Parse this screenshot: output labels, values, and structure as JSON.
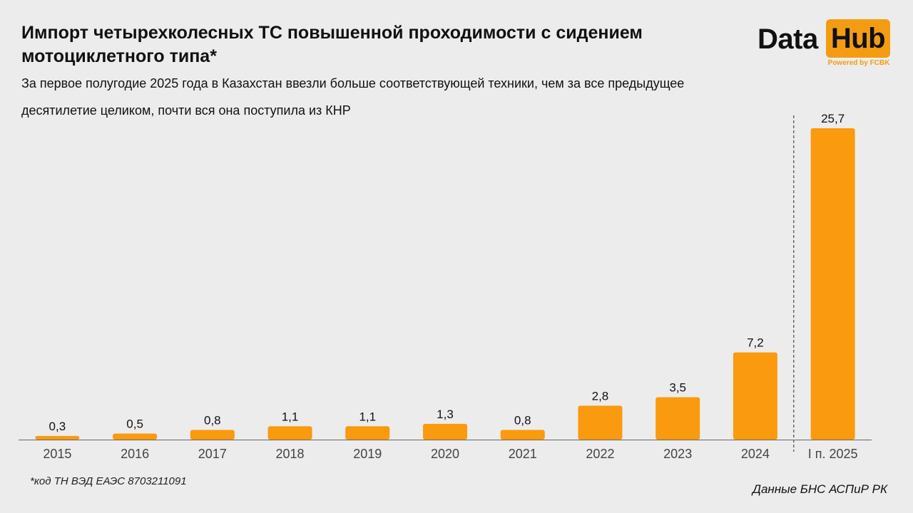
{
  "header": {
    "title": "Импорт четырехколесных ТС повышенной проходимости с сидением мотоциклетного типа*",
    "subtitle": "За первое полугодие 2025 года в Казахстан ввезли больше соответствующей техники, чем за все предыдущее десятилетие целиком, почти вся она поступила из КНР"
  },
  "logo": {
    "data_text": "Data",
    "hub_text": "Hub",
    "powered_text": "Powered by FCBK"
  },
  "colors": {
    "bar": "#fa9a0f",
    "accent": "#f39c12",
    "background": "#ececec"
  },
  "chart_data": {
    "type": "bar",
    "categories": [
      "2015",
      "2016",
      "2017",
      "2018",
      "2019",
      "2020",
      "2021",
      "2022",
      "2023",
      "2024",
      "I п. 2025"
    ],
    "values": [
      0.3,
      0.5,
      0.8,
      1.1,
      1.1,
      1.3,
      0.8,
      2.8,
      3.5,
      7.2,
      25.7
    ],
    "labels": [
      "0,3",
      "0,5",
      "0,8",
      "1,1",
      "1,1",
      "1,3",
      "0,8",
      "2,8",
      "3,5",
      "7,2",
      "25,7"
    ],
    "ylim": [
      0,
      25.7
    ],
    "grid": false,
    "separator_before_index": 10
  },
  "footer": {
    "footnote": "*код ТН ВЭД ЕАЭС 8703211091",
    "source": "Данные БНС АСПиР РК"
  }
}
